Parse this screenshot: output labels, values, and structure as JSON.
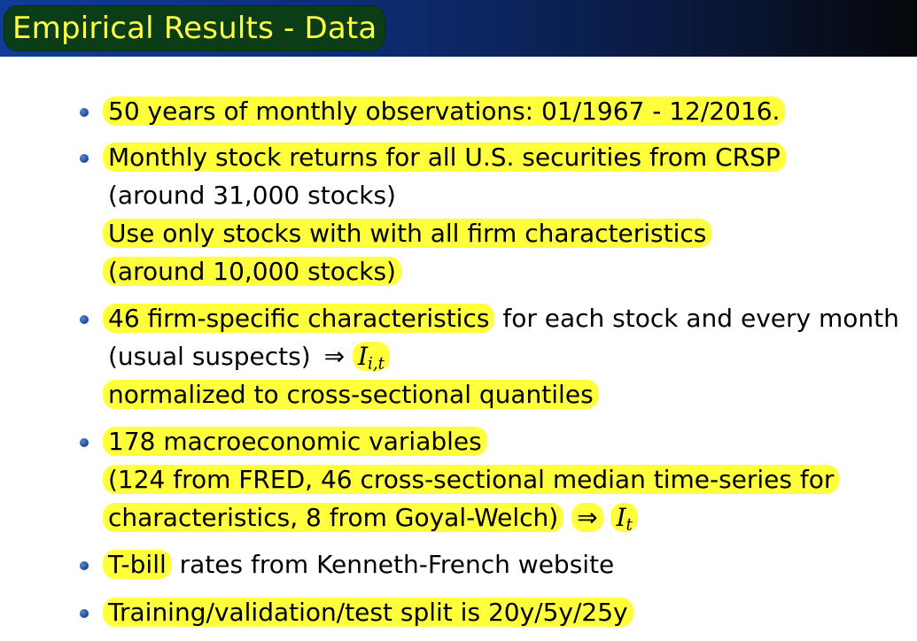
{
  "slide": {
    "title": "Empirical Results - Data"
  },
  "bullets": [
    {
      "lines": [
        "50 years of monthly observations: 01/1967 - 12/2016."
      ]
    },
    {
      "lines": [
        "Monthly stock returns for all U.S. securities from CRSP",
        "(around 31,000 stocks)",
        "Use only stocks with with all firm characteristics",
        "(around 10,000 stocks)"
      ]
    },
    {
      "lines": [
        "46 firm-specific characteristics",
        "for each stock and every month",
        "(usual suspects)",
        "⇒",
        "I",
        "i,t",
        "normalized to cross-sectional quantiles"
      ]
    },
    {
      "lines": [
        "178 macroeconomic variables",
        "(124 from FRED, 46 cross-sectional median time-series for",
        "characteristics, 8 from Goyal-Welch)",
        "⇒",
        "I",
        "t"
      ]
    },
    {
      "lines": [
        "T-bill",
        "rates from Kenneth-French website"
      ]
    },
    {
      "lines": [
        "Training/validation/test split is 20y/5y/25y"
      ]
    }
  ]
}
